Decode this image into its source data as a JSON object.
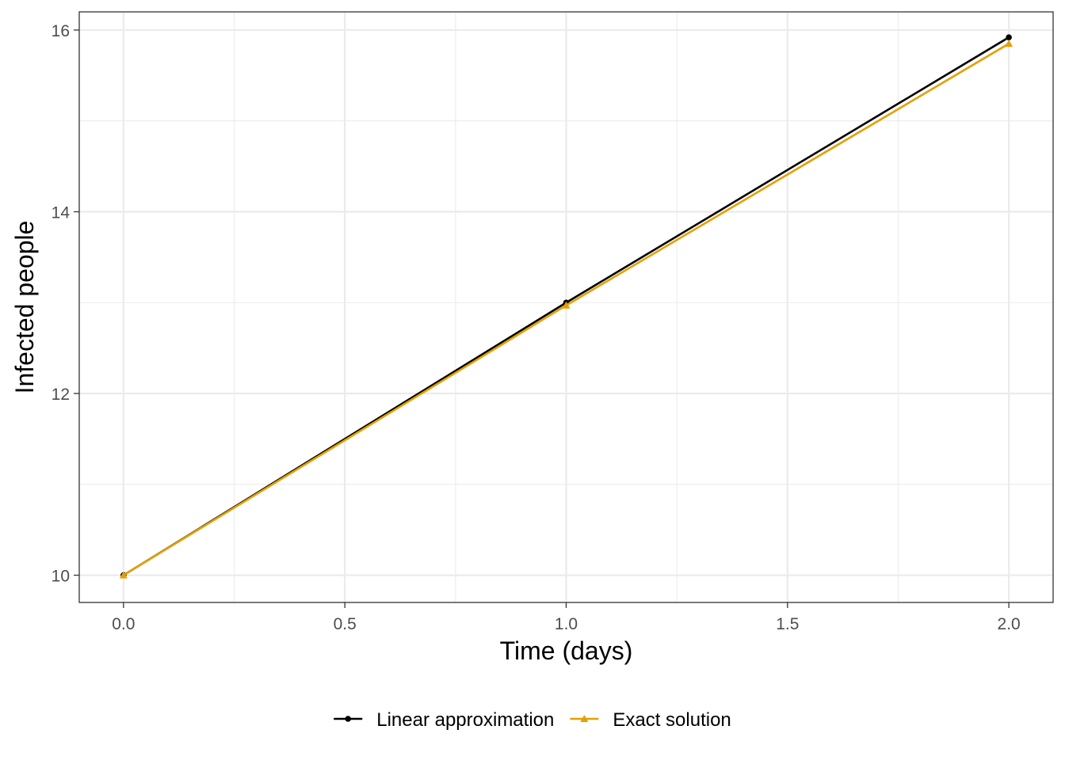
{
  "chart_data": {
    "type": "line",
    "xlabel": "Time (days)",
    "ylabel": "Infected people",
    "xlim": [
      -0.1,
      2.1
    ],
    "ylim": [
      9.7,
      16.2
    ],
    "x_ticks": [
      0.0,
      0.5,
      1.0,
      1.5,
      2.0
    ],
    "x_tick_labels": [
      "0.0",
      "0.5",
      "1.0",
      "1.5",
      "2.0"
    ],
    "x_minor_ticks": [
      0.25,
      0.75,
      1.25,
      1.75
    ],
    "y_ticks": [
      10,
      12,
      14,
      16
    ],
    "y_tick_labels": [
      "10",
      "12",
      "14",
      "16"
    ],
    "y_minor_ticks": [
      11,
      13,
      15
    ],
    "grid": true,
    "legend_position": "bottom",
    "series": [
      {
        "name": "Linear approximation",
        "color": "#000000",
        "marker": "circle",
        "x": [
          0,
          1,
          2
        ],
        "y": [
          10,
          13,
          15.92
        ]
      },
      {
        "name": "Exact solution",
        "color": "#E69F00",
        "marker": "triangle",
        "x": [
          0,
          1,
          2
        ],
        "y": [
          10,
          12.97,
          15.85
        ]
      }
    ]
  }
}
